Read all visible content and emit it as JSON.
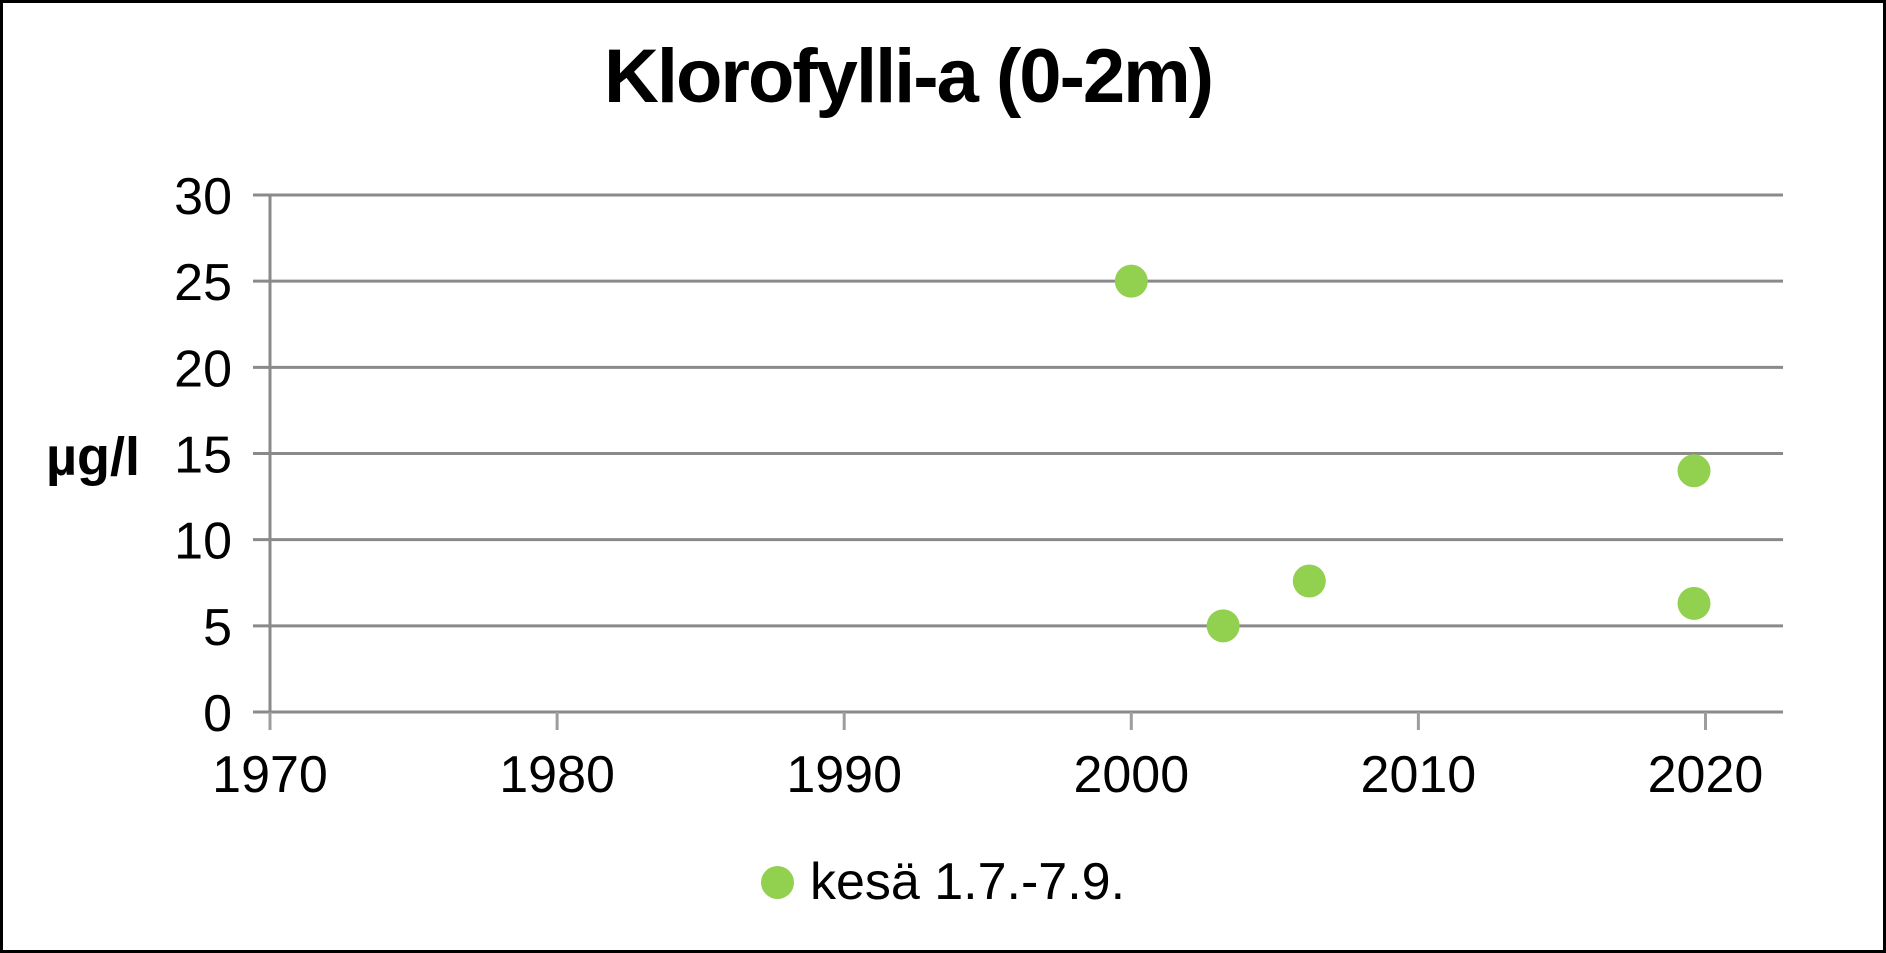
{
  "window": {
    "background": "#ffffff",
    "border_color": "#000000"
  },
  "chart_data": {
    "type": "scatter",
    "title": "Klorofylli-a (0-2m)",
    "ylabel": "µg/l",
    "xlabel": "",
    "xlim": [
      1970,
      2022.7
    ],
    "ylim": [
      0,
      30
    ],
    "xticks": [
      1970,
      1980,
      1990,
      2000,
      2010,
      2020
    ],
    "yticks": [
      0,
      5,
      10,
      15,
      20,
      25,
      30
    ],
    "grid": "horizontal",
    "legend_position": "bottom",
    "series": [
      {
        "name": "kesä 1.7.-7.9.",
        "color": "#92d050",
        "marker": "circle",
        "marker_radius": 16.5,
        "points": [
          {
            "x": 2000,
            "y": 25
          },
          {
            "x": 2003.2,
            "y": 5
          },
          {
            "x": 2006.2,
            "y": 7.6
          },
          {
            "x": 2019.6,
            "y": 14
          },
          {
            "x": 2019.6,
            "y": 6.3
          }
        ]
      }
    ],
    "colors": {
      "grid": "#8a8a8a",
      "tick": "#9d9d9d",
      "text": "#000000"
    }
  }
}
